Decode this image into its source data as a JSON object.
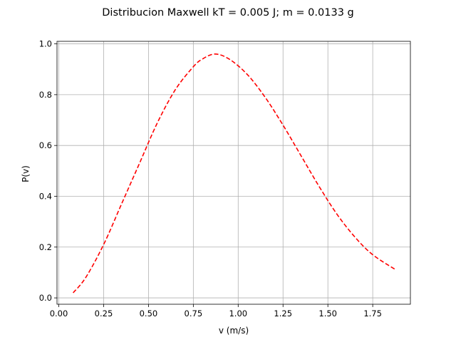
{
  "chart_data": {
    "type": "line",
    "title": "Distribucion Maxwell kT = 0.005 J; m = 0.0133 g",
    "xlabel": "v (m/s)",
    "ylabel": "P(v)",
    "xlim": [
      -0.01,
      1.96
    ],
    "ylim": [
      -0.025,
      1.01
    ],
    "xticks": [
      0.0,
      0.25,
      0.5,
      0.75,
      1.0,
      1.25,
      1.5,
      1.75
    ],
    "xtick_labels": [
      "0.00",
      "0.25",
      "0.50",
      "0.75",
      "1.00",
      "1.25",
      "1.50",
      "1.75"
    ],
    "yticks": [
      0.0,
      0.2,
      0.4,
      0.6,
      0.8,
      1.0
    ],
    "ytick_labels": [
      "0.0",
      "0.2",
      "0.4",
      "0.6",
      "0.8",
      "1.0"
    ],
    "grid": true,
    "series": [
      {
        "color": "#ff0000",
        "line_style": "dashed",
        "x": [
          0.08,
          0.15,
          0.25,
          0.35,
          0.45,
          0.55,
          0.65,
          0.75,
          0.8,
          0.87,
          0.95,
          1.05,
          1.15,
          1.25,
          1.35,
          1.45,
          1.55,
          1.65,
          1.75,
          1.88
        ],
        "y": [
          0.02,
          0.08,
          0.21,
          0.37,
          0.53,
          0.69,
          0.82,
          0.91,
          0.94,
          0.96,
          0.94,
          0.88,
          0.79,
          0.68,
          0.56,
          0.44,
          0.33,
          0.24,
          0.17,
          0.11
        ]
      }
    ]
  }
}
